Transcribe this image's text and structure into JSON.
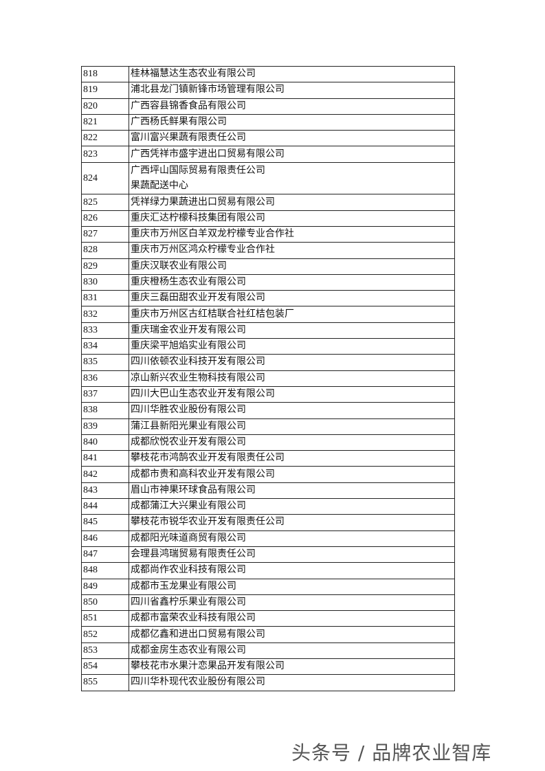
{
  "table": {
    "rows": [
      {
        "no": "818",
        "name": "桂林福慧达生态农业有限公司"
      },
      {
        "no": "819",
        "name": "浦北县龙门镇新锋市场管理有限公司"
      },
      {
        "no": "820",
        "name": "广西容县锦香食品有限公司"
      },
      {
        "no": "821",
        "name": "广西杨氏鲜果有限公司"
      },
      {
        "no": "822",
        "name": "富川富兴果蔬有限责任公司"
      },
      {
        "no": "823",
        "name": "广西凭祥市盛宇进出口贸易有限公司"
      },
      {
        "no": "824",
        "name": "广西坪山国际贸易有限责任公司",
        "name2": "果蔬配送中心"
      },
      {
        "no": "825",
        "name": "凭祥绿力果蔬进出口贸易有限公司"
      },
      {
        "no": "826",
        "name": "重庆汇达柠檬科技集团有限公司"
      },
      {
        "no": "827",
        "name": "重庆市万州区白羊双龙柠檬专业合作社"
      },
      {
        "no": "828",
        "name": "重庆市万州区鸿众柠檬专业合作社"
      },
      {
        "no": "829",
        "name": "重庆汉联农业有限公司"
      },
      {
        "no": "830",
        "name": "重庆橙杨生态农业有限公司"
      },
      {
        "no": "831",
        "name": "重庆三磊田甜农业开发有限公司"
      },
      {
        "no": "832",
        "name": "重庆市万州区古红桔联合社红桔包装厂"
      },
      {
        "no": "833",
        "name": "重庆瑞金农业开发有限公司"
      },
      {
        "no": "834",
        "name": "重庆梁平旭焰实业有限公司"
      },
      {
        "no": "835",
        "name": "四川依顿农业科技开发有限公司"
      },
      {
        "no": "836",
        "name": "凉山新兴农业生物科技有限公司"
      },
      {
        "no": "837",
        "name": "四川大巴山生态农业开发有限公司"
      },
      {
        "no": "838",
        "name": "四川华胜农业股份有限公司"
      },
      {
        "no": "839",
        "name": "蒲江县新阳光果业有限公司"
      },
      {
        "no": "840",
        "name": "成都欣悦农业开发有限公司"
      },
      {
        "no": "841",
        "name": "攀枝花市鸿鹄农业开发有限责任公司"
      },
      {
        "no": "842",
        "name": "成都市贵和高科农业开发有限公司"
      },
      {
        "no": "843",
        "name": "眉山市神果环球食品有限公司"
      },
      {
        "no": "844",
        "name": "成都蒲江大兴果业有限公司"
      },
      {
        "no": "845",
        "name": "攀枝花市锐华农业开发有限责任公司"
      },
      {
        "no": "846",
        "name": "成都阳光味道商贸有限公司"
      },
      {
        "no": "847",
        "name": "会理县鸿瑞贸易有限责任公司"
      },
      {
        "no": "848",
        "name": "成都尚作农业科技有限公司"
      },
      {
        "no": "849",
        "name": "成都市玉龙果业有限公司"
      },
      {
        "no": "850",
        "name": "四川省鑫柠乐果业有限公司"
      },
      {
        "no": "851",
        "name": "成都市富荣农业科技有限公司"
      },
      {
        "no": "852",
        "name": "成都亿鑫和进出口贸易有限公司"
      },
      {
        "no": "853",
        "name": "成都金房生态农业有限公司"
      },
      {
        "no": "854",
        "name": "攀枝花市水果汁恋果品开发有限公司"
      },
      {
        "no": "855",
        "name": "四川华朴现代农业股份有限公司"
      }
    ]
  },
  "footer": {
    "watermark": "头条号 / 品牌农业智库"
  }
}
